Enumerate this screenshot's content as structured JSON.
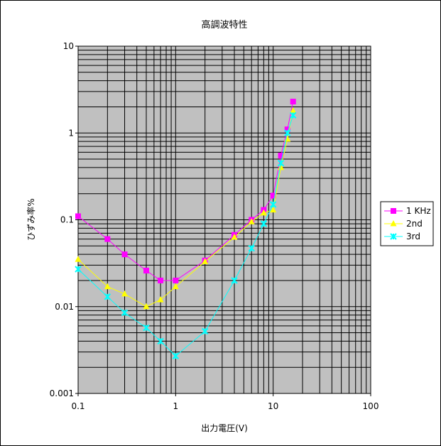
{
  "chart_data": {
    "type": "line",
    "title": "高調波特性",
    "xlabel": "出力電圧(V)",
    "ylabel": "ひずみ率%",
    "x_scale": "log",
    "y_scale": "log",
    "xlim": [
      0.1,
      100
    ],
    "ylim": [
      0.001,
      10
    ],
    "x_ticks": [
      0.1,
      1,
      10,
      100
    ],
    "x_tick_labels": [
      "0.1",
      "1",
      "10",
      "100"
    ],
    "y_ticks": [
      0.001,
      0.01,
      0.1,
      1,
      10
    ],
    "y_tick_labels": [
      "0.001",
      "0.01",
      "0.1",
      "1",
      "10"
    ],
    "grid": true,
    "plot_background": "#c0c0c0",
    "legend_position": "right",
    "series": [
      {
        "name": "1 KHz",
        "color": "#ff00ff",
        "marker": "square",
        "points": [
          [
            0.1,
            0.11
          ],
          [
            0.2,
            0.06
          ],
          [
            0.3,
            0.04
          ],
          [
            0.5,
            0.026
          ],
          [
            0.7,
            0.02
          ],
          [
            1,
            0.02
          ],
          [
            2,
            0.034
          ],
          [
            4,
            0.067
          ],
          [
            6,
            0.1
          ],
          [
            8,
            0.13
          ],
          [
            10,
            0.19
          ],
          [
            12,
            0.55
          ],
          [
            14,
            1.1
          ],
          [
            16,
            2.3
          ]
        ]
      },
      {
        "name": "2nd",
        "color": "#ffff00",
        "marker": "triangle",
        "points": [
          [
            0.1,
            0.035
          ],
          [
            0.2,
            0.017
          ],
          [
            0.3,
            0.014
          ],
          [
            0.5,
            0.01
          ],
          [
            0.7,
            0.012
          ],
          [
            1,
            0.017
          ],
          [
            2,
            0.033
          ],
          [
            4,
            0.063
          ],
          [
            6,
            0.095
          ],
          [
            8,
            0.12
          ],
          [
            10,
            0.13
          ],
          [
            12,
            0.4
          ],
          [
            14,
            0.85
          ],
          [
            16,
            1.8
          ]
        ]
      },
      {
        "name": "3rd",
        "color": "#00ffff",
        "marker": "star",
        "points": [
          [
            0.1,
            0.027
          ],
          [
            0.2,
            0.013
          ],
          [
            0.3,
            0.0085
          ],
          [
            0.5,
            0.0057
          ],
          [
            0.7,
            0.004
          ],
          [
            1,
            0.0027
          ],
          [
            2,
            0.0052
          ],
          [
            4,
            0.02
          ],
          [
            6,
            0.047
          ],
          [
            8,
            0.09
          ],
          [
            10,
            0.15
          ],
          [
            12,
            0.45
          ],
          [
            14,
            1.0
          ],
          [
            16,
            1.6
          ]
        ]
      }
    ]
  }
}
